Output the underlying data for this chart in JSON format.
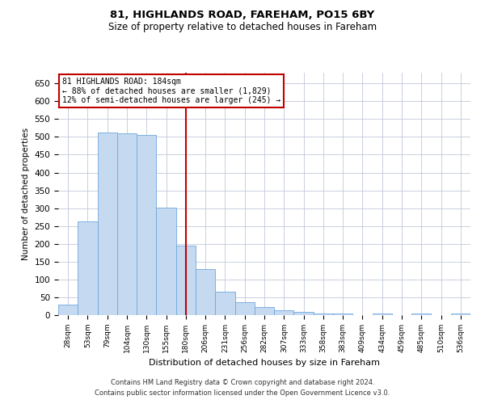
{
  "title1": "81, HIGHLANDS ROAD, FAREHAM, PO15 6BY",
  "title2": "Size of property relative to detached houses in Fareham",
  "xlabel": "Distribution of detached houses by size in Fareham",
  "ylabel": "Number of detached properties",
  "footer1": "Contains HM Land Registry data © Crown copyright and database right 2024.",
  "footer2": "Contains public sector information licensed under the Open Government Licence v3.0.",
  "annotation_line1": "81 HIGHLANDS ROAD: 184sqm",
  "annotation_line2": "← 88% of detached houses are smaller (1,829)",
  "annotation_line3": "12% of semi-detached houses are larger (245) →",
  "bar_color": "#c5d9f0",
  "bar_edge_color": "#6fa8dc",
  "vline_color": "#c00000",
  "annotation_box_color": "#c00000",
  "categories": [
    "28sqm",
    "53sqm",
    "79sqm",
    "104sqm",
    "130sqm",
    "155sqm",
    "180sqm",
    "206sqm",
    "231sqm",
    "256sqm",
    "282sqm",
    "307sqm",
    "333sqm",
    "358sqm",
    "383sqm",
    "409sqm",
    "434sqm",
    "459sqm",
    "485sqm",
    "510sqm",
    "536sqm"
  ],
  "values": [
    30,
    262,
    512,
    511,
    506,
    302,
    196,
    130,
    65,
    37,
    22,
    14,
    9,
    5,
    4,
    0,
    5,
    0,
    5,
    0,
    5
  ],
  "vline_x": 6,
  "ylim": [
    0,
    680
  ],
  "yticks": [
    0,
    50,
    100,
    150,
    200,
    250,
    300,
    350,
    400,
    450,
    500,
    550,
    600,
    650
  ],
  "background_color": "#ffffff",
  "grid_color": "#c0c8d8"
}
